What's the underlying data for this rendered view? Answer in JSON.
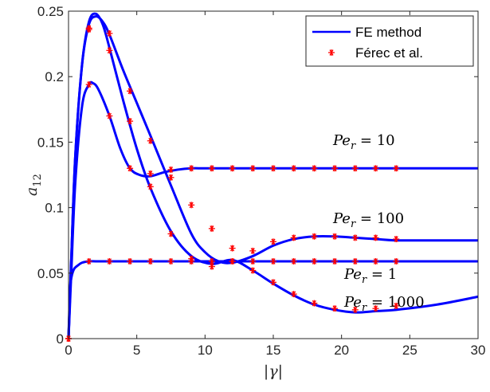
{
  "chart_data": {
    "type": "line",
    "xlabel_parts": [
      "|",
      "γ",
      "|"
    ],
    "ylabel_parts": [
      "a",
      "12"
    ],
    "xlim": [
      0,
      30
    ],
    "ylim": [
      0,
      0.25
    ],
    "xticks": [
      0,
      5,
      10,
      15,
      20,
      25,
      30
    ],
    "xtick_labels": [
      "0",
      "5",
      "10",
      "15",
      "20",
      "25",
      "30"
    ],
    "yticks": [
      0,
      0.05,
      0.1,
      0.15,
      0.2,
      0.25
    ],
    "ytick_labels": [
      "0",
      "0.05",
      "0.1",
      "0.15",
      "0.2",
      "0.25"
    ],
    "grid": false,
    "legend_position": "top-right",
    "legend": [
      {
        "label": "FE method",
        "style": "line",
        "color": "#0000ff"
      },
      {
        "label": "Férec et al.",
        "style": "marker",
        "marker": "*",
        "color": "#ff0000"
      }
    ],
    "colors": {
      "line": "#0000ff",
      "marker": "#ff0000"
    },
    "series": [
      {
        "annotation": [
          "Pe",
          "r",
          " = 1"
        ],
        "fe": {
          "x": [
            0,
            0.1,
            0.2,
            0.4,
            0.7,
            1.0,
            1.5,
            2,
            3,
            5,
            10,
            15,
            20,
            25,
            30
          ],
          "y": [
            0,
            0.035,
            0.046,
            0.053,
            0.056,
            0.058,
            0.059,
            0.059,
            0.059,
            0.059,
            0.059,
            0.059,
            0.059,
            0.059,
            0.059
          ]
        },
        "ferec": {
          "x": [
            0,
            1.5,
            3,
            4.5,
            6,
            7.5,
            9,
            10.5,
            12,
            13.5,
            15,
            16.5,
            18,
            19.5,
            21,
            22.5,
            24
          ],
          "y": [
            0,
            0.059,
            0.059,
            0.059,
            0.059,
            0.059,
            0.059,
            0.059,
            0.059,
            0.059,
            0.059,
            0.059,
            0.059,
            0.059,
            0.059,
            0.059,
            0.059
          ]
        }
      },
      {
        "annotation": [
          "Pe",
          "r",
          " = 10"
        ],
        "fe": {
          "x": [
            0,
            0.2,
            0.5,
            1.0,
            1.5,
            1.8,
            2.2,
            3,
            3.8,
            4.5,
            5.2,
            6,
            7,
            8,
            9,
            10,
            12,
            15,
            20,
            25,
            30
          ],
          "y": [
            0,
            0.05,
            0.12,
            0.178,
            0.194,
            0.195,
            0.19,
            0.17,
            0.145,
            0.13,
            0.125,
            0.124,
            0.127,
            0.129,
            0.13,
            0.13,
            0.13,
            0.13,
            0.13,
            0.13,
            0.13
          ]
        },
        "ferec": {
          "x": [
            0,
            1.5,
            3,
            4.5,
            6,
            7.5,
            9,
            10.5,
            12,
            13.5,
            15,
            16.5,
            18,
            19.5,
            21,
            22.5,
            24
          ],
          "y": [
            0,
            0.194,
            0.17,
            0.13,
            0.126,
            0.129,
            0.13,
            0.13,
            0.13,
            0.13,
            0.13,
            0.13,
            0.13,
            0.13,
            0.13,
            0.13,
            0.13
          ]
        }
      },
      {
        "annotation": [
          "Pe",
          "r",
          " = 100"
        ],
        "fe": {
          "x": [
            0,
            0.2,
            0.5,
            1.0,
            1.5,
            2.0,
            2.5,
            3,
            4,
            5,
            6,
            7.5,
            9,
            10,
            11,
            12,
            13.5,
            15,
            16.5,
            18,
            19.5,
            21,
            22.5,
            24,
            27,
            30
          ],
          "y": [
            0,
            0.06,
            0.14,
            0.21,
            0.24,
            0.246,
            0.242,
            0.232,
            0.205,
            0.18,
            0.155,
            0.117,
            0.08,
            0.066,
            0.059,
            0.058,
            0.063,
            0.071,
            0.076,
            0.078,
            0.078,
            0.077,
            0.076,
            0.075,
            0.075,
            0.075
          ]
        },
        "ferec": {
          "x": [
            0,
            1.5,
            3,
            4.5,
            6,
            7.5,
            9,
            10.5,
            12,
            13.5,
            15,
            16.5,
            18,
            19.5,
            21,
            22.5,
            24
          ],
          "y": [
            0,
            0.237,
            0.233,
            0.189,
            0.151,
            0.123,
            0.102,
            0.084,
            0.069,
            0.067,
            0.074,
            0.077,
            0.078,
            0.078,
            0.077,
            0.077,
            0.076
          ]
        }
      },
      {
        "annotation": [
          "Pe",
          "r",
          " = 1000"
        ],
        "fe": {
          "x": [
            0,
            0.2,
            0.5,
            1.0,
            1.5,
            2.0,
            2.5,
            3,
            4,
            5,
            6,
            7.5,
            9,
            10.5,
            12,
            13.5,
            15,
            16.5,
            18,
            19.5,
            21,
            22.5,
            24,
            27,
            30
          ],
          "y": [
            0,
            0.06,
            0.14,
            0.21,
            0.242,
            0.248,
            0.24,
            0.222,
            0.182,
            0.145,
            0.115,
            0.082,
            0.063,
            0.057,
            0.06,
            0.052,
            0.042,
            0.033,
            0.026,
            0.022,
            0.02,
            0.021,
            0.022,
            0.026,
            0.032
          ]
        },
        "ferec": {
          "x": [
            0,
            1.5,
            3,
            4.5,
            6,
            7.5,
            9,
            10.5,
            12,
            13.5,
            15,
            16.5,
            18,
            19.5,
            21,
            22.5,
            24
          ],
          "y": [
            0,
            0.236,
            0.22,
            0.166,
            0.116,
            0.08,
            0.061,
            0.055,
            0.059,
            0.052,
            0.043,
            0.034,
            0.027,
            0.023,
            0.022,
            0.023,
            0.025
          ]
        }
      }
    ]
  }
}
